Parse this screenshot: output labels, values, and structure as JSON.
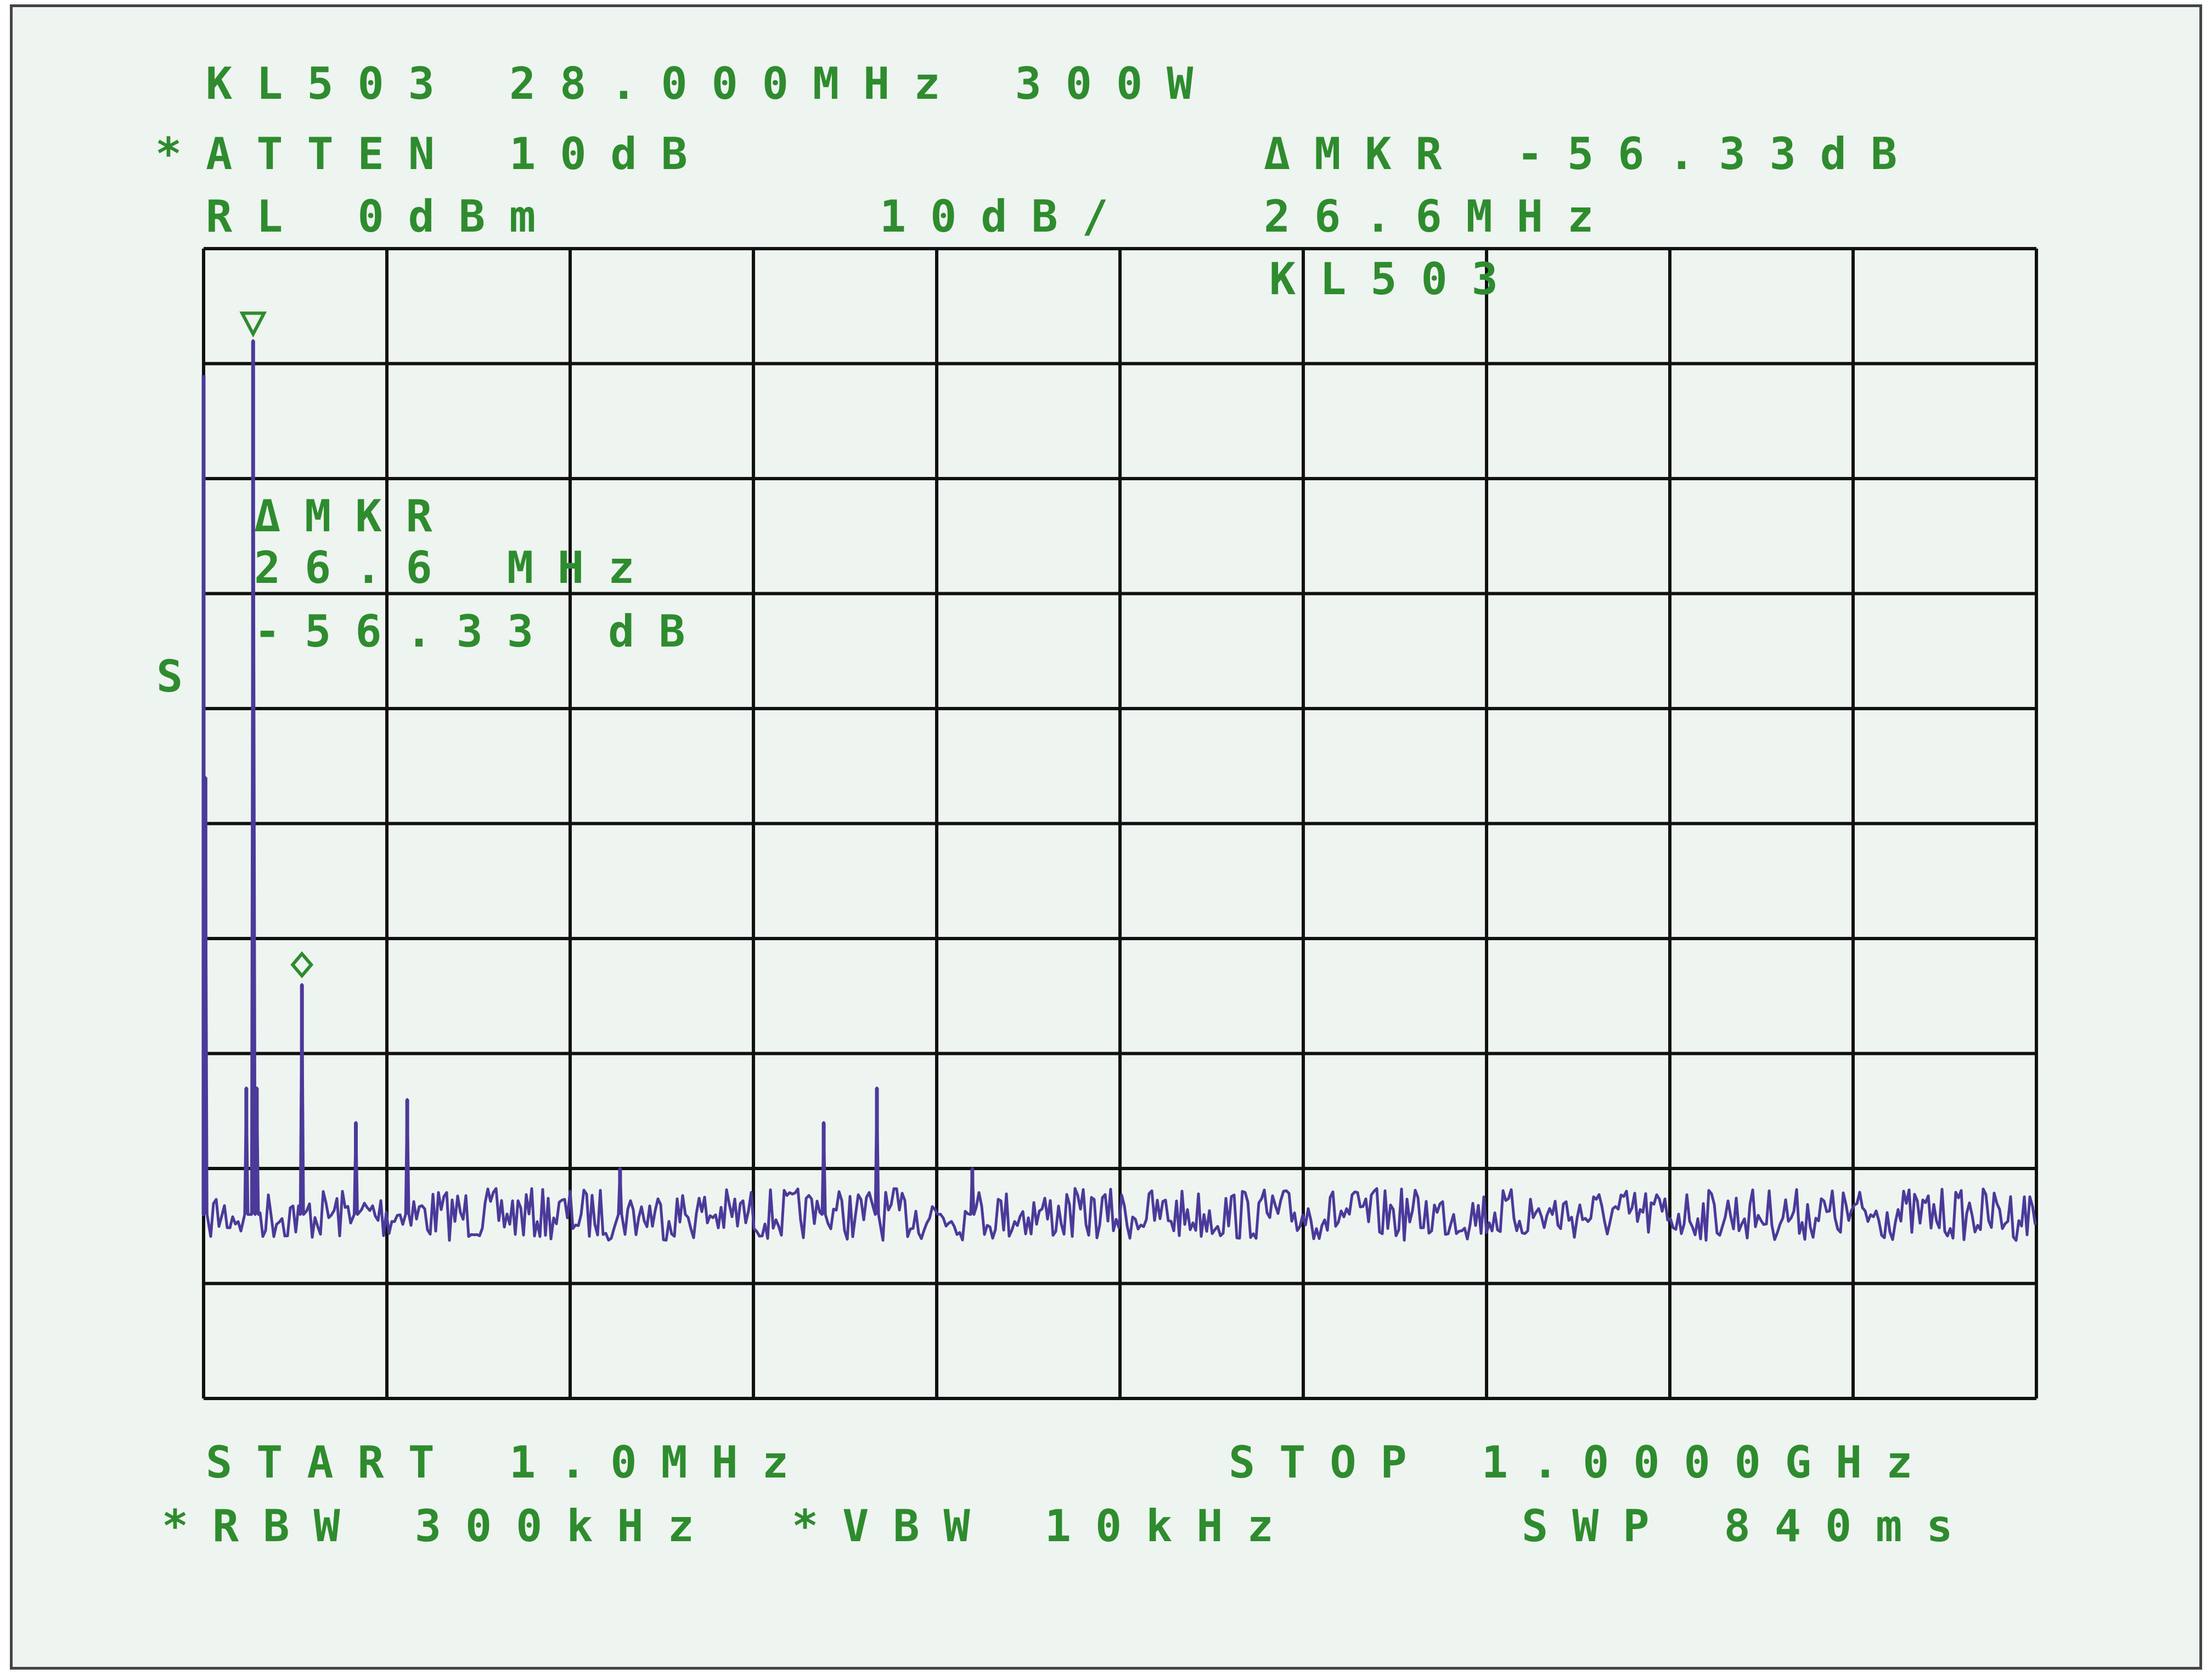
{
  "header": {
    "title": "KL503 28.000MHz 300W",
    "atten": "*ATTEN 10dB",
    "ref_level": "RL 0dBm",
    "scale": "10dB/",
    "delta_marker_label": "ΔMKR -56.33dB",
    "delta_marker_freq": "26.6MHz",
    "trace_title": "KL503"
  },
  "marker_box": {
    "label": "ΔMKR",
    "freq": "26.6 MHz",
    "level": "-56.33 dB"
  },
  "side_label": "S",
  "footer": {
    "start": "START 1.0MHz",
    "stop": "STOP 1.0000GHz",
    "rbw": "*RBW 300kHz",
    "vbw": "*VBW 10kHz",
    "sweep": "SWP 840ms"
  },
  "colors": {
    "background": "#eef4ef",
    "grid": "#111111",
    "text": "#2e8b2e",
    "trace": "#4b3a9a",
    "marker": "#2e8b2e"
  },
  "chart_data": {
    "type": "line",
    "title": "KL503 28.000MHz 300W",
    "xlabel": "",
    "ylabel": "",
    "x_unit": "MHz",
    "y_unit": "dBm",
    "xlim": [
      1.0,
      1000.0
    ],
    "ylim": [
      -100,
      0
    ],
    "grid": true,
    "noise_floor_dbm": -84,
    "spikes": [
      {
        "x": 1.0,
        "y": -11
      },
      {
        "x": 2.0,
        "y": -46
      },
      {
        "x": 24.3,
        "y": -73
      },
      {
        "x": 28.0,
        "y": -8
      },
      {
        "x": 30.0,
        "y": -73
      },
      {
        "x": 54.6,
        "y": -64
      },
      {
        "x": 84.0,
        "y": -76
      },
      {
        "x": 112.0,
        "y": -74
      },
      {
        "x": 228.0,
        "y": -80
      },
      {
        "x": 339.0,
        "y": -76
      },
      {
        "x": 368.0,
        "y": -73
      },
      {
        "x": 420.0,
        "y": -80
      }
    ],
    "markers": [
      {
        "type": "reference",
        "x": 28.0,
        "y": -8,
        "symbol": "triangle"
      },
      {
        "type": "delta",
        "x": 54.6,
        "y": -64,
        "symbol": "diamond"
      }
    ]
  }
}
